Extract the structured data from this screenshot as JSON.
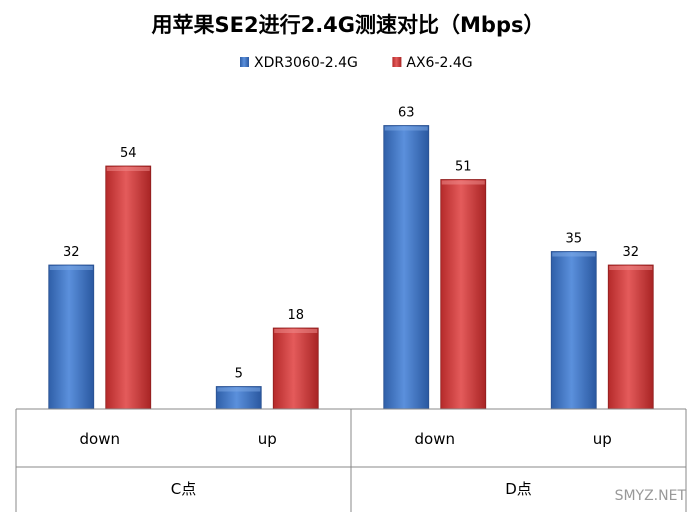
{
  "chart_data": {
    "type": "bar",
    "title": "用苹果SE2进行2.4G测速对比（Mbps）",
    "groups": [
      {
        "label": "C点",
        "categories": [
          "down",
          "up"
        ]
      },
      {
        "label": "D点",
        "categories": [
          "down",
          "up"
        ]
      }
    ],
    "categories": [
      "down",
      "up",
      "down",
      "up"
    ],
    "series": [
      {
        "name": "XDR3060-2.4G",
        "color": "#3b73c6",
        "values": [
          32,
          5,
          63,
          35
        ]
      },
      {
        "name": "AX6-2.4G",
        "color": "#d23b3b",
        "values": [
          54,
          18,
          51,
          32
        ]
      }
    ],
    "ylim": [
      0,
      70
    ],
    "legend_position": "top",
    "grid": false,
    "data_labels": true
  },
  "watermark": "SMYZ.NET"
}
